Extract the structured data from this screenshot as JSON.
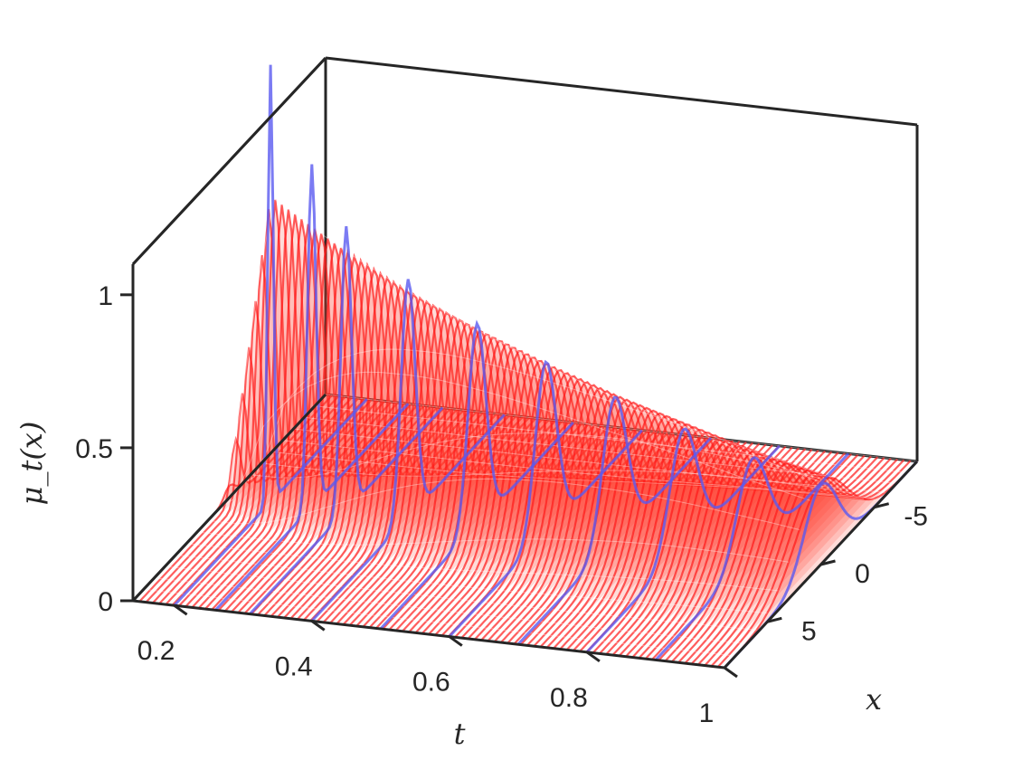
{
  "chart_data": {
    "type": "surface-3d",
    "xlabel": "t",
    "ylabel": "x",
    "zlabel": "μ_t(x)",
    "t_range": [
      0.14,
      1
    ],
    "x_range": [
      -9,
      9
    ],
    "z_range": [
      0,
      1.1
    ],
    "t_ticks": [
      {
        "value": 0.2,
        "label": "0.2"
      },
      {
        "value": 0.4,
        "label": "0.4"
      },
      {
        "value": 0.6,
        "label": "0.6"
      },
      {
        "value": 0.8,
        "label": "0.8"
      },
      {
        "value": 1,
        "label": "1"
      }
    ],
    "x_ticks": [
      {
        "value": -5,
        "label": "-5"
      },
      {
        "value": 0,
        "label": "0"
      },
      {
        "value": 5,
        "label": "5"
      }
    ],
    "z_ticks": [
      {
        "value": 0,
        "label": "0"
      },
      {
        "value": 0.5,
        "label": "0.5"
      },
      {
        "value": 1,
        "label": "1"
      }
    ],
    "series": [
      {
        "kind": "surface",
        "color": "#ff1a1a",
        "peak_values": [
          {
            "t": 0.14,
            "z": 0.04
          },
          {
            "t": 0.2,
            "z": 1.0
          },
          {
            "t": 0.3,
            "z": 0.86
          },
          {
            "t": 0.4,
            "z": 0.74
          },
          {
            "t": 0.5,
            "z": 0.64
          },
          {
            "t": 0.6,
            "z": 0.55
          },
          {
            "t": 0.7,
            "z": 0.47
          },
          {
            "t": 0.8,
            "z": 0.4
          },
          {
            "t": 0.9,
            "z": 0.33
          },
          {
            "t": 1.0,
            "z": 0.27
          }
        ]
      },
      {
        "kind": "curves",
        "color": "#5a5af0",
        "peak_values": [
          {
            "t": 0.2,
            "z": 1.43
          },
          {
            "t": 0.26,
            "z": 1.12
          },
          {
            "t": 0.31,
            "z": 0.93
          },
          {
            "t": 0.4,
            "z": 0.78
          },
          {
            "t": 0.5,
            "z": 0.66
          },
          {
            "t": 0.6,
            "z": 0.56
          },
          {
            "t": 0.7,
            "z": 0.47
          },
          {
            "t": 0.8,
            "z": 0.39
          },
          {
            "t": 0.9,
            "z": 0.32
          },
          {
            "t": 1.0,
            "z": 0.26
          }
        ]
      }
    ],
    "grid": false,
    "colors": {
      "surface": "#ff1a1a",
      "curves": "#5a5af0",
      "axes": "#262626"
    }
  }
}
